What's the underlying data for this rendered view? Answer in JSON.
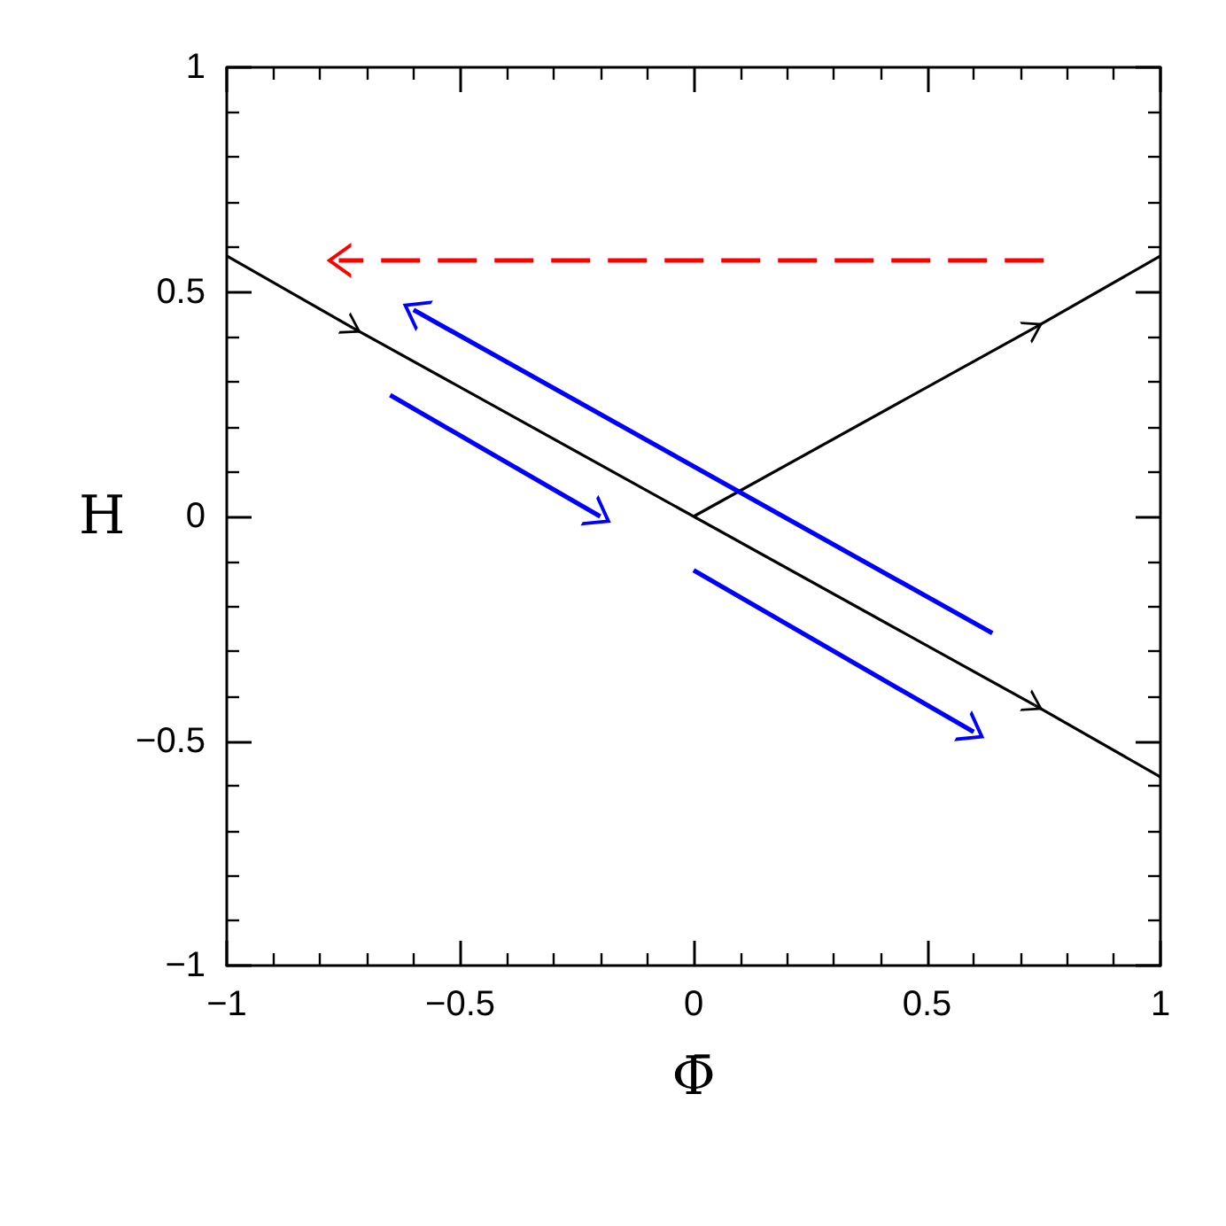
{
  "chart_data": {
    "type": "line",
    "xlabel": "Φ̄",
    "ylabel": "H",
    "xlim": [
      -1,
      1
    ],
    "ylim": [
      -1,
      1
    ],
    "xticks": [
      {
        "value": -1,
        "label": "−1"
      },
      {
        "value": -0.5,
        "label": "−0.5"
      },
      0,
      0.5,
      1
    ],
    "yticks": [
      {
        "value": -1,
        "label": "−1"
      },
      {
        "value": -0.5,
        "label": "−0.5"
      },
      0,
      0.5,
      1
    ],
    "grid": false,
    "marker": "none",
    "line_style": "solid",
    "series": [
      {
        "color": "#000000",
        "x": [
          -1,
          -0.73
        ],
        "values": [
          0.58,
          0.42
        ]
      },
      {
        "color": "#000000",
        "x": [
          -0.73,
          0.73
        ],
        "values": [
          0.42,
          -0.42
        ]
      },
      {
        "color": "#000000",
        "x": [
          0.73,
          1
        ],
        "values": [
          -0.42,
          -0.58
        ]
      },
      {
        "color": "#000000",
        "x": [
          0,
          0.73
        ],
        "values": [
          0,
          0.42
        ]
      },
      {
        "color": "#000000",
        "x": [
          0.73,
          1
        ],
        "values": [
          0.42,
          0.58
        ]
      },
      {
        "color": "#0000ff",
        "x": [
          -0.65,
          -0.2
        ],
        "values": [
          0.27,
          0
        ]
      },
      {
        "color": "#0000ff",
        "x": [
          0.64,
          -0.6
        ],
        "values": [
          -0.26,
          0.46
        ]
      },
      {
        "color": "#0000ff",
        "x": [
          0,
          0.6
        ],
        "values": [
          -0.12,
          -0.48
        ]
      },
      {
        "color": "#ff0000",
        "x": [
          0.75,
          -0.76
        ],
        "values": [
          0.57,
          0.57
        ],
        "line_style": "dashed"
      }
    ]
  }
}
